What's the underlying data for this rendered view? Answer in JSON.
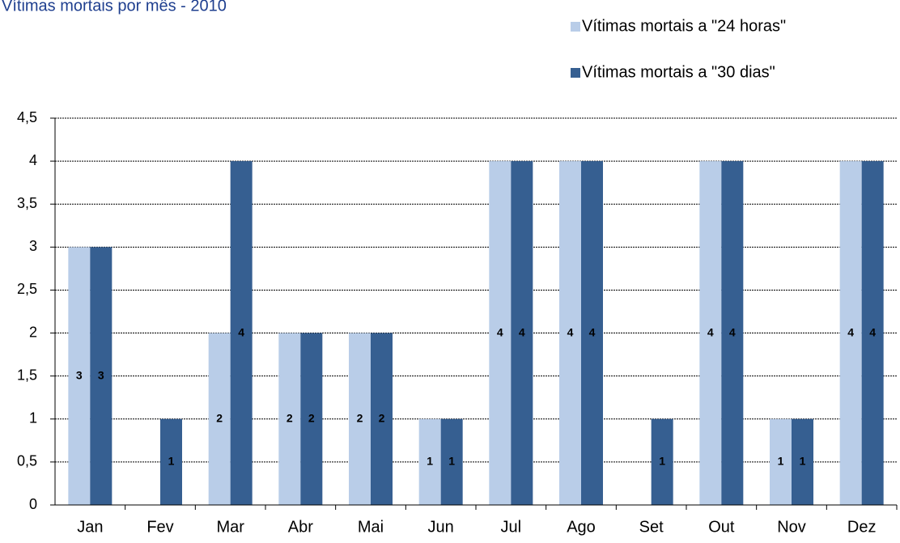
{
  "chart_data": {
    "type": "bar",
    "title": "Vítimas mortais por mês - 2010",
    "categories": [
      "Jan",
      "Fev",
      "Mar",
      "Abr",
      "Mai",
      "Jun",
      "Jul",
      "Ago",
      "Set",
      "Out",
      "Nov",
      "Dez"
    ],
    "series": [
      {
        "name": "Vítimas mortais a \"24 horas\"",
        "color": "#b9cde8",
        "values": [
          3,
          0,
          2,
          2,
          2,
          1,
          4,
          4,
          0,
          4,
          1,
          4
        ]
      },
      {
        "name": "Vítimas mortais a \"30 dias\"",
        "color": "#365f91",
        "values": [
          3,
          1,
          4,
          2,
          2,
          1,
          4,
          4,
          1,
          4,
          1,
          4
        ]
      }
    ],
    "ylim": [
      0,
      4.5
    ],
    "yticks": [
      0,
      {
        "value": 0.5,
        "label": "0,5"
      },
      1,
      {
        "value": 1.5,
        "label": "1,5"
      },
      2,
      {
        "value": 2.5,
        "label": "2,5"
      },
      3,
      {
        "value": 3.5,
        "label": "3,5"
      },
      4,
      {
        "value": 4.5,
        "label": "4,5"
      }
    ],
    "grid": true
  }
}
